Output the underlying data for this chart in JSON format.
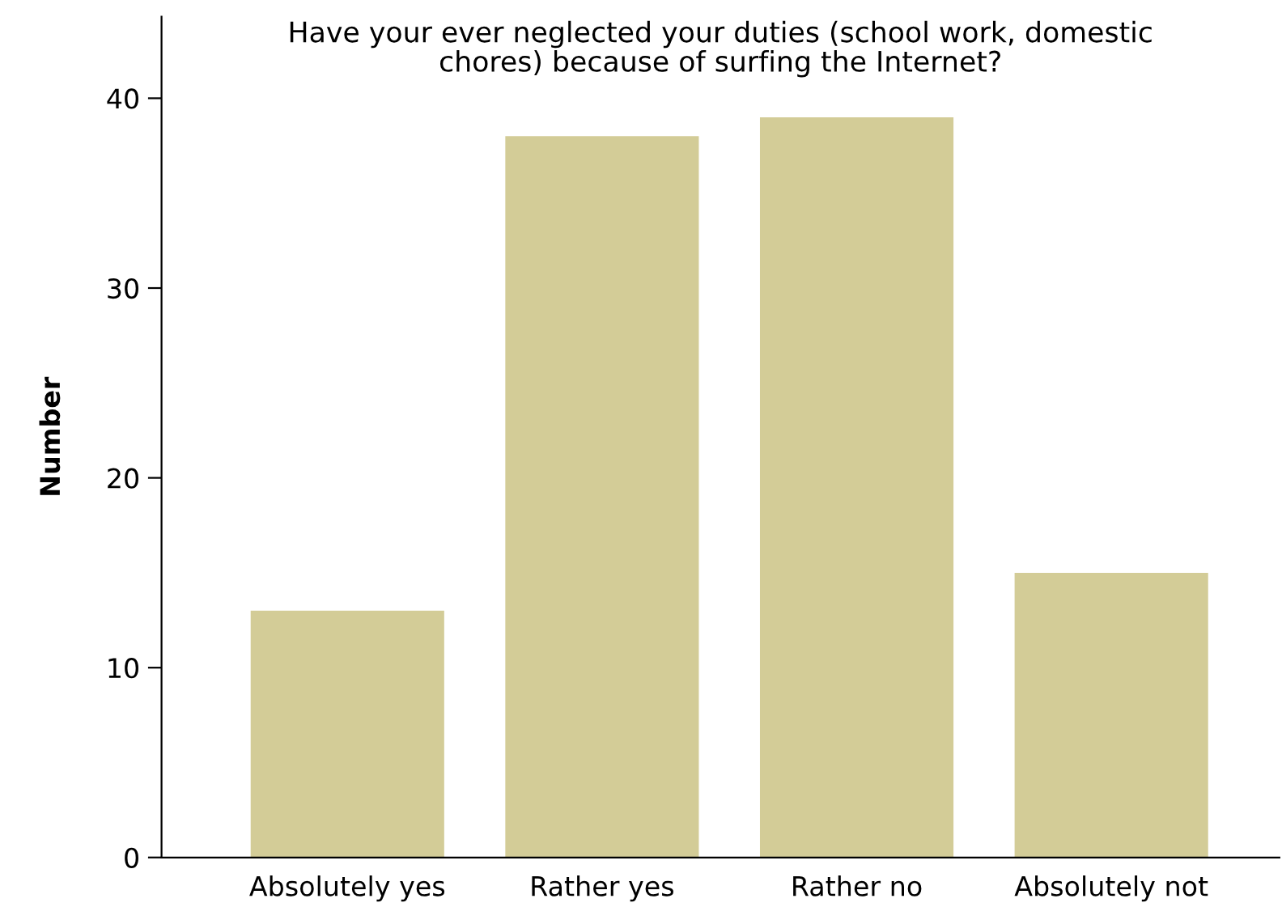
{
  "chart_data": {
    "type": "bar",
    "title": "Have your ever neglected your duties (school work, domestic\nchores) because of surfing the Internet?",
    "ylabel": "Number",
    "categories": [
      "Absolutely yes",
      "Rather yes",
      "Rather no",
      "Absolutely not"
    ],
    "values": [
      13,
      38,
      39,
      15
    ],
    "color": "#d3cc97",
    "ylim": [
      0,
      44.3
    ],
    "yticks": [
      0,
      10,
      20,
      30,
      40
    ],
    "grid": false,
    "legend": false
  }
}
